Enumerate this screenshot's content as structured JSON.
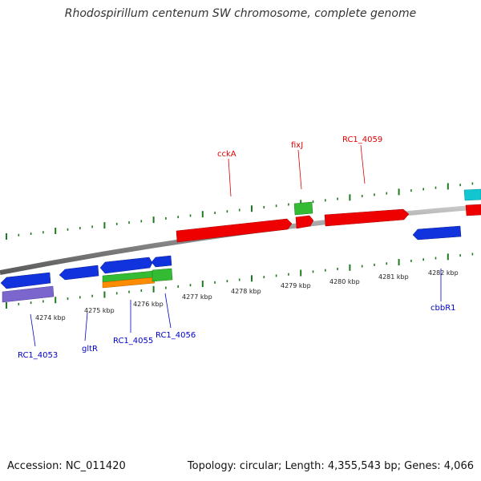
{
  "title": "Rhodospirillum centenum SW chromosome, complete genome",
  "footer": {
    "accession": "Accession: NC_011420",
    "topology": "Topology: circular; Length: 4,355,543 bp; Genes: 4,066"
  },
  "colors": {
    "backbone": "#8a8a8a",
    "ticks": "#1f7a1f",
    "kbp_label": "#222222",
    "label_upper": "#dd0000",
    "label_lower": "#0000cc",
    "red": "#ee0000",
    "green": "#33bb33",
    "blue": "#1133dd",
    "cyan": "#11c6d0",
    "orange": "#ff8c00",
    "purple": "#7a66cc"
  },
  "kbp_labels": [
    "4274 kbp",
    "4275 kbp",
    "4276 kbp",
    "4277 kbp",
    "4278 kbp",
    "4279 kbp",
    "4280 kbp",
    "4281 kbp",
    "4282 kbp"
  ],
  "gene_labels_upper": [
    "cckA",
    "fixJ",
    "RC1_4059"
  ],
  "gene_labels_lower": [
    "RC1_4053",
    "gltR",
    "RC1_4055",
    "RC1_4056",
    "cbbR1"
  ]
}
